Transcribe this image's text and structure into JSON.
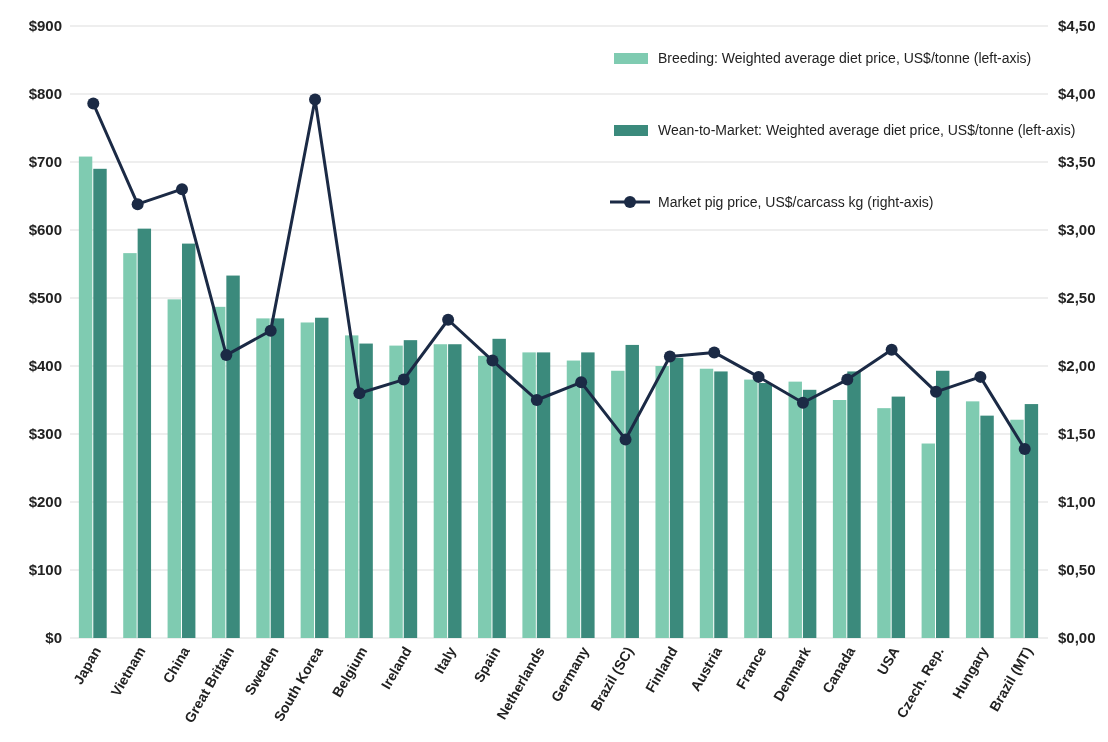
{
  "chart_data": {
    "type": "bar",
    "categories": [
      "Japan",
      "Vietnam",
      "China",
      "Great Britain",
      "Sweden",
      "South Korea",
      "Belgium",
      "Ireland",
      "Italy",
      "Spain",
      "Netherlands",
      "Germany",
      "Brazil (SC)",
      "Finland",
      "Austria",
      "France",
      "Denmark",
      "Canada",
      "USA",
      "Czech. Rep.",
      "Hungary",
      "Brazil (MT)"
    ],
    "series": [
      {
        "name": "Breeding: Weighted average diet price, US$/tonne (left-axis)",
        "color": "#7fcbb1",
        "values": [
          708,
          566,
          498,
          487,
          470,
          464,
          445,
          430,
          432,
          415,
          420,
          408,
          393,
          400,
          396,
          380,
          377,
          350,
          338,
          286,
          348,
          321
        ]
      },
      {
        "name": "Wean-to-Market: Weighted average diet price, US$/tonne (left-axis)",
        "color": "#3b8a7c",
        "values": [
          690,
          602,
          580,
          533,
          470,
          471,
          433,
          438,
          432,
          440,
          420,
          420,
          431,
          412,
          392,
          375,
          365,
          392,
          355,
          393,
          327,
          344
        ]
      },
      {
        "name": "Market pig price, US$/carcass kg (right-axis)",
        "type": "line",
        "axis": "y2",
        "color": "#1b2a45",
        "values": [
          3.93,
          3.19,
          3.3,
          2.08,
          2.26,
          3.96,
          1.8,
          1.9,
          2.34,
          2.04,
          1.75,
          1.88,
          1.46,
          2.07,
          2.1,
          1.92,
          1.73,
          1.9,
          2.12,
          1.81,
          1.92,
          1.39
        ]
      }
    ],
    "ylim": [
      0,
      900
    ],
    "yticks": [
      {
        "value": 0,
        "label": "$0"
      },
      {
        "value": 100,
        "label": "$100"
      },
      {
        "value": 200,
        "label": "$200"
      },
      {
        "value": 300,
        "label": "$300"
      },
      {
        "value": 400,
        "label": "$400"
      },
      {
        "value": 500,
        "label": "$500"
      },
      {
        "value": 600,
        "label": "$600"
      },
      {
        "value": 700,
        "label": "$700"
      },
      {
        "value": 800,
        "label": "$800"
      },
      {
        "value": 900,
        "label": "$900"
      }
    ],
    "y2lim": [
      0,
      4.5
    ],
    "y2ticks": [
      {
        "value": 0,
        "label": "$0,00"
      },
      {
        "value": 0.5,
        "label": "$0,50"
      },
      {
        "value": 1,
        "label": "$1,00"
      },
      {
        "value": 1.5,
        "label": "$1,50"
      },
      {
        "value": 2,
        "label": "$2,00"
      },
      {
        "value": 2.5,
        "label": "$2,50"
      },
      {
        "value": 3,
        "label": "$3,00"
      },
      {
        "value": 3.5,
        "label": "$3,50"
      },
      {
        "value": 4,
        "label": "$4,00"
      },
      {
        "value": 4.5,
        "label": "$4,50"
      }
    ],
    "grid": "y",
    "legend": "top right",
    "marker": "circle",
    "line_style": "solid"
  }
}
